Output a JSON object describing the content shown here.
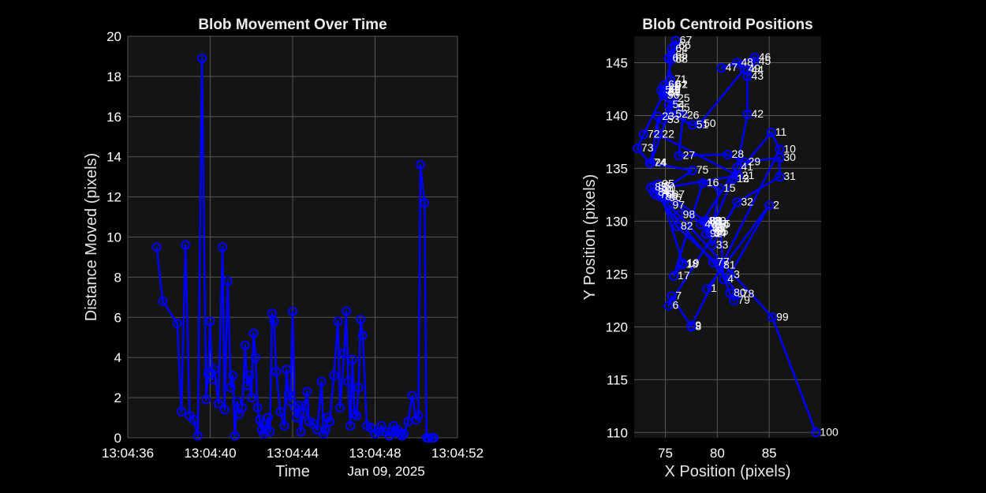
{
  "colors": {
    "background": "#000000",
    "axes_face": "#141414",
    "grid": "#555555",
    "series": "#0000ff",
    "text": "#ffffff"
  },
  "chart_data": [
    {
      "type": "line",
      "title": "Blob Movement Over Time",
      "xlabel": "Time",
      "ylabel": "Distance Moved (pixels)",
      "date_label": "Jan 09, 2025",
      "x_unit": "seconds after 13:04:36",
      "xlim": [
        0,
        16
      ],
      "ylim": [
        0,
        20
      ],
      "xticks": [
        0,
        4,
        8,
        12,
        16
      ],
      "xtick_labels": [
        "13:04:36",
        "13:04:40",
        "13:04:44",
        "13:04:48",
        "13:04:52"
      ],
      "yticks": [
        0,
        2,
        4,
        6,
        8,
        10,
        12,
        14,
        16,
        18,
        20
      ],
      "grid": true,
      "marker": "circle",
      "series": [
        {
          "x": [
            1.4,
            1.7,
            2.4,
            2.6,
            2.8,
            3.0,
            3.2,
            3.4,
            3.6,
            3.8,
            3.9,
            4.0,
            4.1,
            4.2,
            4.4,
            4.6,
            4.7,
            4.85,
            5.0,
            5.1,
            5.2,
            5.3,
            5.4,
            5.55,
            5.7,
            5.8,
            5.9,
            6.0,
            6.1,
            6.2,
            6.3,
            6.4,
            6.5,
            6.55,
            6.6,
            6.7,
            6.8,
            6.9,
            7.0,
            7.1,
            7.2,
            7.4,
            7.6,
            7.7,
            7.8,
            7.9,
            8.0,
            8.1,
            8.2,
            8.3,
            8.4,
            8.5,
            8.6,
            8.7,
            8.8,
            9.0,
            9.2,
            9.4,
            9.5,
            9.6,
            9.7,
            9.8,
            10.0,
            10.2,
            10.3,
            10.5,
            10.6,
            10.7,
            10.8,
            10.9,
            11.0,
            11.1,
            11.2,
            11.3,
            11.4,
            11.6,
            11.8,
            12.0,
            12.2,
            12.3,
            12.5,
            12.7,
            12.8,
            12.9,
            13.0,
            13.1,
            13.2,
            13.3,
            13.4,
            13.6,
            13.8,
            14.0,
            14.1,
            14.2,
            14.4,
            14.5,
            14.6,
            14.75,
            14.85
          ],
          "y": [
            9.5,
            6.8,
            5.7,
            1.3,
            9.6,
            1.1,
            0.9,
            0.1,
            18.9,
            1.9,
            3.2,
            5.8,
            2.9,
            3.4,
            1.7,
            9.5,
            1.4,
            7.8,
            2.5,
            3.1,
            0.1,
            1.8,
            1.2,
            1.5,
            4.6,
            2.6,
            3.1,
            2.0,
            5.2,
            4.0,
            1.5,
            0.9,
            0.4,
            0.7,
            0.2,
            0.4,
            1.0,
            0.3,
            6.2,
            5.8,
            3.3,
            1.3,
            0.6,
            3.4,
            2.2,
            1.8,
            6.3,
            1.5,
            1.0,
            1.6,
            0.3,
            1.2,
            1.6,
            2.3,
            0.8,
            0.7,
            0.4,
            2.8,
            0.2,
            0.4,
            1.0,
            0.8,
            3.1,
            5.8,
            1.5,
            4.2,
            6.3,
            2.8,
            0.6,
            3.9,
            1.2,
            1.1,
            2.5,
            5.9,
            5.1,
            0.6,
            0.5,
            0.2,
            0.3,
            0.6,
            0.3,
            0.1,
            0.3,
            0.6,
            0.3,
            0.4,
            0.2,
            0.1,
            0.2,
            0.8,
            2.1,
            0.9,
            1.1,
            13.6,
            11.7,
            0.0,
            0.0,
            0.0,
            0.0
          ]
        }
      ]
    },
    {
      "type": "line",
      "title": "Blob Centroid Positions",
      "xlabel": "X Position (pixels)",
      "ylabel": "Y Position (pixels)",
      "xlim": [
        72,
        90
      ],
      "ylim": [
        109.5,
        147.5
      ],
      "xticks": [
        75,
        80,
        85
      ],
      "yticks": [
        110,
        115,
        120,
        125,
        130,
        135,
        140,
        145
      ],
      "grid": true,
      "marker": "circle",
      "series": [
        {
          "labels": [
            "1",
            "2",
            "3",
            "4",
            "5",
            "6",
            "7",
            "8",
            "9",
            "10",
            "11",
            "12",
            "13",
            "14",
            "15",
            "16",
            "17",
            "18",
            "19",
            "20",
            "21",
            "22",
            "23",
            "24",
            "25",
            "26",
            "27",
            "28",
            "29",
            "30",
            "31",
            "32",
            "33",
            "34",
            "35",
            "36",
            "37",
            "38",
            "39",
            "40",
            "41",
            "42",
            "43",
            "44",
            "45",
            "46",
            "47",
            "48",
            "49",
            "50",
            "51",
            "52",
            "53",
            "54",
            "55",
            "56",
            "57",
            "58",
            "59",
            "60",
            "61",
            "62",
            "63",
            "64",
            "65",
            "66",
            "67",
            "68",
            "69",
            "70",
            "71",
            "72",
            "73",
            "74",
            "75",
            "76",
            "77",
            "78",
            "79",
            "80",
            "81",
            "82",
            "83",
            "84",
            "85",
            "86",
            "87",
            "88",
            "89",
            "90",
            "91",
            "92",
            "93",
            "94",
            "95",
            "96",
            "97",
            "98",
            "99",
            "100"
          ],
          "x": [
            79.0,
            85.0,
            81.2,
            80.6,
            80.3,
            75.3,
            75.6,
            77.5,
            77.5,
            86.0,
            85.2,
            81.5,
            81.5,
            79.6,
            80.2,
            78.6,
            75.8,
            76.6,
            76.7,
            74.4,
            82.0,
            74.3,
            74.3,
            73.6,
            75.8,
            76.7,
            76.3,
            81.0,
            82.6,
            86.0,
            86.0,
            81.9,
            79.5,
            79.3,
            79.5,
            79.3,
            79.3,
            78.9,
            79.3,
            78.4,
            81.9,
            82.9,
            82.9,
            82.9,
            83.6,
            83.6,
            80.4,
            81.9,
            82.6,
            78.3,
            77.6,
            75.6,
            74.8,
            75.3,
            75.8,
            74.8,
            74.9,
            74.6,
            74.9,
            74.9,
            75.6,
            75.6,
            75.3,
            75.6,
            75.6,
            75.9,
            76.0,
            75.6,
            74.9,
            74.9,
            75.5,
            72.9,
            72.3,
            73.5,
            77.6,
            74.1,
            79.6,
            82.0,
            81.6,
            81.2,
            80.2,
            76.1,
            73.9,
            73.9,
            73.6,
            74.6,
            75.3,
            78.8,
            78.9,
            79.3,
            79.1,
            78.9,
            79.1,
            74.3,
            74.3,
            75.0,
            75.3,
            76.3,
            85.3,
            89.5
          ],
          "y": [
            123.6,
            131.5,
            124.9,
            124.5,
            129.7,
            122.0,
            122.9,
            120.0,
            120.1,
            136.8,
            138.4,
            134.0,
            134.0,
            129.7,
            133.1,
            133.6,
            124.8,
            125.9,
            126.0,
            133.1,
            134.3,
            138.2,
            139.9,
            135.5,
            141.6,
            140.0,
            136.2,
            136.3,
            135.6,
            136.0,
            134.2,
            131.8,
            127.7,
            128.8,
            129.0,
            129.7,
            129.3,
            130.0,
            130.0,
            129.7,
            135.1,
            140.1,
            143.7,
            144.3,
            145.1,
            145.5,
            144.5,
            145.0,
            144.4,
            139.2,
            139.1,
            140.1,
            139.6,
            141.0,
            140.7,
            141.9,
            142.1,
            142.4,
            142.2,
            142.9,
            142.9,
            142.9,
            145.4,
            146.3,
            145.7,
            146.6,
            147.1,
            145.3,
            142.4,
            142.5,
            143.4,
            138.2,
            136.9,
            135.5,
            134.8,
            132.5,
            126.1,
            123.1,
            122.5,
            123.2,
            125.8,
            129.5,
            133.3,
            132.7,
            133.2,
            132.3,
            132.5,
            130.0,
            130.0,
            128.9,
            129.4,
            128.8,
            129.3,
            132.9,
            133.5,
            132.2,
            131.5,
            130.6,
            120.9,
            110.0
          ]
        }
      ]
    }
  ]
}
